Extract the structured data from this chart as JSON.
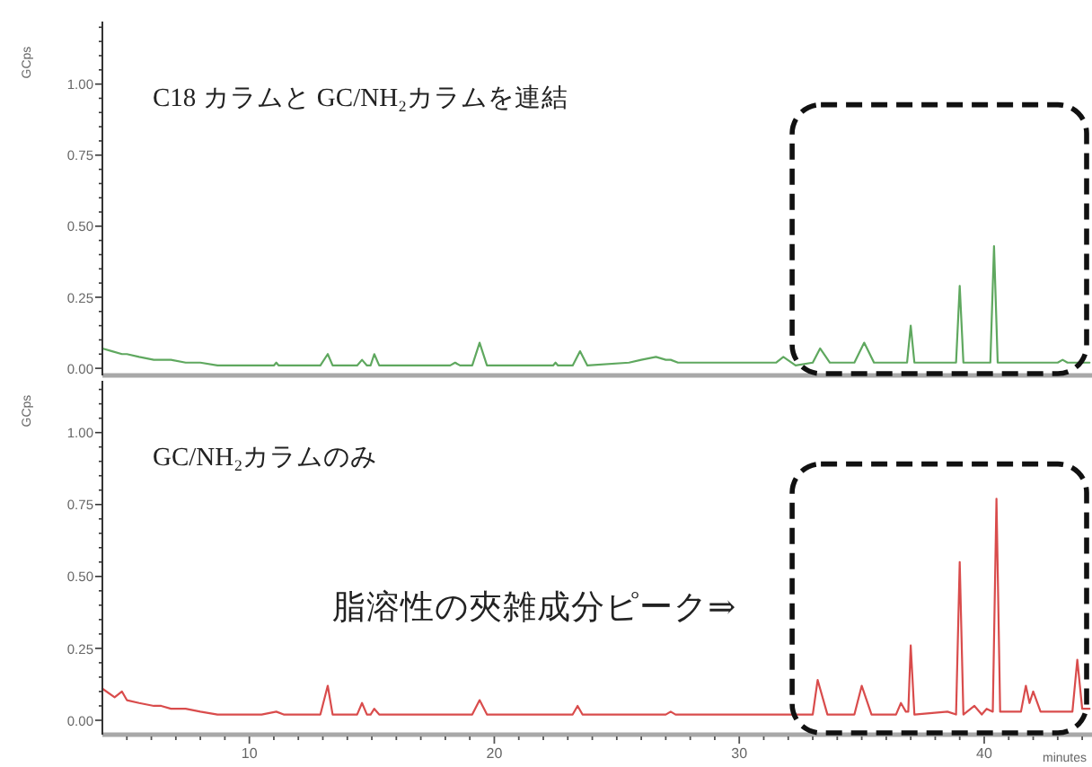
{
  "chart_data": [
    {
      "type": "line",
      "title": "C18 カラムと GC/NH₂カラムを連結",
      "ylabel": "GCps",
      "xlim": [
        4,
        44.4
      ],
      "ylim": [
        -0.025,
        1.22
      ],
      "tick_labels": "y",
      "yticks": [
        {
          "value": 0,
          "label": "0.00"
        },
        {
          "value": 0.05,
          "label": null
        },
        {
          "value": 0.1,
          "label": null
        },
        {
          "value": 0.15,
          "label": null
        },
        {
          "value": 0.2,
          "label": null
        },
        {
          "value": 0.25,
          "label": "0.25"
        },
        {
          "value": 0.3,
          "label": null
        },
        {
          "value": 0.35,
          "label": null
        },
        {
          "value": 0.4,
          "label": null
        },
        {
          "value": 0.45,
          "label": null
        },
        {
          "value": 0.5,
          "label": "0.50"
        },
        {
          "value": 0.55,
          "label": null
        },
        {
          "value": 0.6,
          "label": null
        },
        {
          "value": 0.65,
          "label": null
        },
        {
          "value": 0.7,
          "label": null
        },
        {
          "value": 0.75,
          "label": "0.75"
        },
        {
          "value": 0.8,
          "label": null
        },
        {
          "value": 0.85,
          "label": null
        },
        {
          "value": 0.9,
          "label": null
        },
        {
          "value": 0.95,
          "label": null
        },
        {
          "value": 1,
          "label": "1.00"
        },
        {
          "value": 1.05,
          "label": null
        },
        {
          "value": 1.1,
          "label": null
        },
        {
          "value": 1.15,
          "label": null
        },
        {
          "value": 1.2,
          "label": null
        }
      ],
      "series": [
        {
          "color": "#5fa85f",
          "x": [
            4.0,
            4.4,
            4.8,
            5.0,
            5.5,
            6.1,
            6.8,
            7.4,
            8.0,
            8.7,
            10.0,
            11.0,
            11.1,
            11.2,
            12.9,
            13.2,
            13.4,
            14.4,
            14.6,
            14.8,
            14.95,
            15.1,
            15.3,
            18.2,
            18.4,
            18.6,
            19.1,
            19.4,
            19.7,
            22.4,
            22.5,
            22.6,
            23.2,
            23.5,
            23.8,
            25.5,
            26.0,
            26.6,
            27.0,
            27.2,
            27.5,
            28.0,
            29.0,
            30.0,
            31.5,
            31.8,
            32.3,
            33.0,
            33.3,
            33.7,
            34.7,
            35.1,
            35.5,
            36.85,
            37.0,
            37.15,
            38.85,
            39.0,
            39.15,
            40.25,
            40.4,
            40.55,
            41.5,
            43.0,
            43.2,
            43.4,
            44.3
          ],
          "values": [
            0.07,
            0.06,
            0.05,
            0.05,
            0.04,
            0.03,
            0.03,
            0.02,
            0.02,
            0.01,
            0.01,
            0.01,
            0.02,
            0.01,
            0.01,
            0.05,
            0.01,
            0.01,
            0.03,
            0.01,
            0.01,
            0.05,
            0.01,
            0.01,
            0.02,
            0.01,
            0.01,
            0.09,
            0.01,
            0.01,
            0.02,
            0.01,
            0.01,
            0.06,
            0.01,
            0.02,
            0.03,
            0.04,
            0.03,
            0.03,
            0.02,
            0.02,
            0.02,
            0.02,
            0.02,
            0.04,
            0.01,
            0.02,
            0.07,
            0.02,
            0.02,
            0.09,
            0.02,
            0.02,
            0.15,
            0.02,
            0.02,
            0.29,
            0.02,
            0.02,
            0.43,
            0.02,
            0.02,
            0.02,
            0.03,
            0.02,
            0.02
          ]
        }
      ]
    },
    {
      "type": "line",
      "title": "GC/NH₂カラムのみ",
      "ylabel": "GCps",
      "xlabel": "minutes",
      "annotations": [
        "脂溶性の夾雑成分ピーク⇒"
      ],
      "xlim": [
        4,
        44.4
      ],
      "ylim": [
        -0.05,
        1.18
      ],
      "xticks": [
        {
          "value": 5,
          "label": null
        },
        {
          "value": 6,
          "label": null
        },
        {
          "value": 7,
          "label": null
        },
        {
          "value": 8,
          "label": null
        },
        {
          "value": 9,
          "label": null
        },
        10,
        {
          "value": 11,
          "label": null
        },
        {
          "value": 12,
          "label": null
        },
        {
          "value": 13,
          "label": null
        },
        {
          "value": 14,
          "label": null
        },
        {
          "value": 15,
          "label": null
        },
        {
          "value": 16,
          "label": null
        },
        {
          "value": 17,
          "label": null
        },
        {
          "value": 18,
          "label": null
        },
        {
          "value": 19,
          "label": null
        },
        20,
        {
          "value": 21,
          "label": null
        },
        {
          "value": 22,
          "label": null
        },
        {
          "value": 23,
          "label": null
        },
        {
          "value": 24,
          "label": null
        },
        {
          "value": 25,
          "label": null
        },
        {
          "value": 26,
          "label": null
        },
        {
          "value": 27,
          "label": null
        },
        {
          "value": 28,
          "label": null
        },
        {
          "value": 29,
          "label": null
        },
        30,
        {
          "value": 31,
          "label": null
        },
        {
          "value": 32,
          "label": null
        },
        {
          "value": 33,
          "label": null
        },
        {
          "value": 34,
          "label": null
        },
        {
          "value": 35,
          "label": null
        },
        {
          "value": 36,
          "label": null
        },
        {
          "value": 37,
          "label": null
        },
        {
          "value": 38,
          "label": null
        },
        {
          "value": 39,
          "label": null
        },
        40,
        {
          "value": 41,
          "label": null
        },
        {
          "value": 42,
          "label": null
        },
        {
          "value": 43,
          "label": null
        },
        {
          "value": 44,
          "label": null
        }
      ],
      "yticks": [
        {
          "value": 0,
          "label": "0.00"
        },
        {
          "value": 0.05,
          "label": null
        },
        {
          "value": 0.1,
          "label": null
        },
        {
          "value": 0.15,
          "label": null
        },
        {
          "value": 0.2,
          "label": null
        },
        {
          "value": 0.25,
          "label": "0.25"
        },
        {
          "value": 0.3,
          "label": null
        },
        {
          "value": 0.35,
          "label": null
        },
        {
          "value": 0.4,
          "label": null
        },
        {
          "value": 0.45,
          "label": null
        },
        {
          "value": 0.5,
          "label": "0.50"
        },
        {
          "value": 0.55,
          "label": null
        },
        {
          "value": 0.6,
          "label": null
        },
        {
          "value": 0.65,
          "label": null
        },
        {
          "value": 0.7,
          "label": null
        },
        {
          "value": 0.75,
          "label": "0.75"
        },
        {
          "value": 0.8,
          "label": null
        },
        {
          "value": 0.85,
          "label": null
        },
        {
          "value": 0.9,
          "label": null
        },
        {
          "value": 0.95,
          "label": null
        },
        {
          "value": 1,
          "label": "1.00"
        },
        {
          "value": 1.05,
          "label": null
        },
        {
          "value": 1.1,
          "label": null
        },
        {
          "value": 1.15,
          "label": null
        }
      ],
      "series": [
        {
          "color": "#d94c4c",
          "x": [
            4.0,
            4.5,
            4.8,
            5.0,
            5.5,
            6.1,
            6.4,
            6.8,
            7.4,
            8.0,
            8.7,
            10.5,
            11.1,
            11.4,
            12.9,
            13.2,
            13.4,
            14.4,
            14.6,
            14.8,
            14.95,
            15.1,
            15.3,
            19.1,
            19.4,
            19.7,
            23.2,
            23.4,
            23.6,
            27.0,
            27.2,
            27.4,
            29.5,
            33.0,
            33.2,
            33.6,
            34.7,
            35.0,
            35.4,
            36.4,
            36.6,
            36.8,
            36.9,
            37.0,
            37.15,
            38.5,
            38.85,
            39.0,
            39.15,
            39.6,
            39.9,
            40.1,
            40.35,
            40.5,
            40.65,
            41.2,
            41.5,
            41.7,
            41.85,
            42.0,
            42.3,
            42.7,
            43.6,
            43.8,
            44.0,
            44.3
          ],
          "values": [
            0.11,
            0.08,
            0.1,
            0.07,
            0.06,
            0.05,
            0.05,
            0.04,
            0.04,
            0.03,
            0.02,
            0.02,
            0.03,
            0.02,
            0.02,
            0.12,
            0.02,
            0.02,
            0.06,
            0.02,
            0.02,
            0.04,
            0.02,
            0.02,
            0.07,
            0.02,
            0.02,
            0.05,
            0.02,
            0.02,
            0.03,
            0.02,
            0.02,
            0.02,
            0.14,
            0.02,
            0.02,
            0.12,
            0.02,
            0.02,
            0.06,
            0.03,
            0.03,
            0.26,
            0.02,
            0.03,
            0.02,
            0.55,
            0.02,
            0.05,
            0.02,
            0.04,
            0.03,
            0.77,
            0.03,
            0.03,
            0.03,
            0.12,
            0.06,
            0.1,
            0.03,
            0.03,
            0.03,
            0.21,
            0.04,
            0.04
          ]
        }
      ]
    }
  ]
}
